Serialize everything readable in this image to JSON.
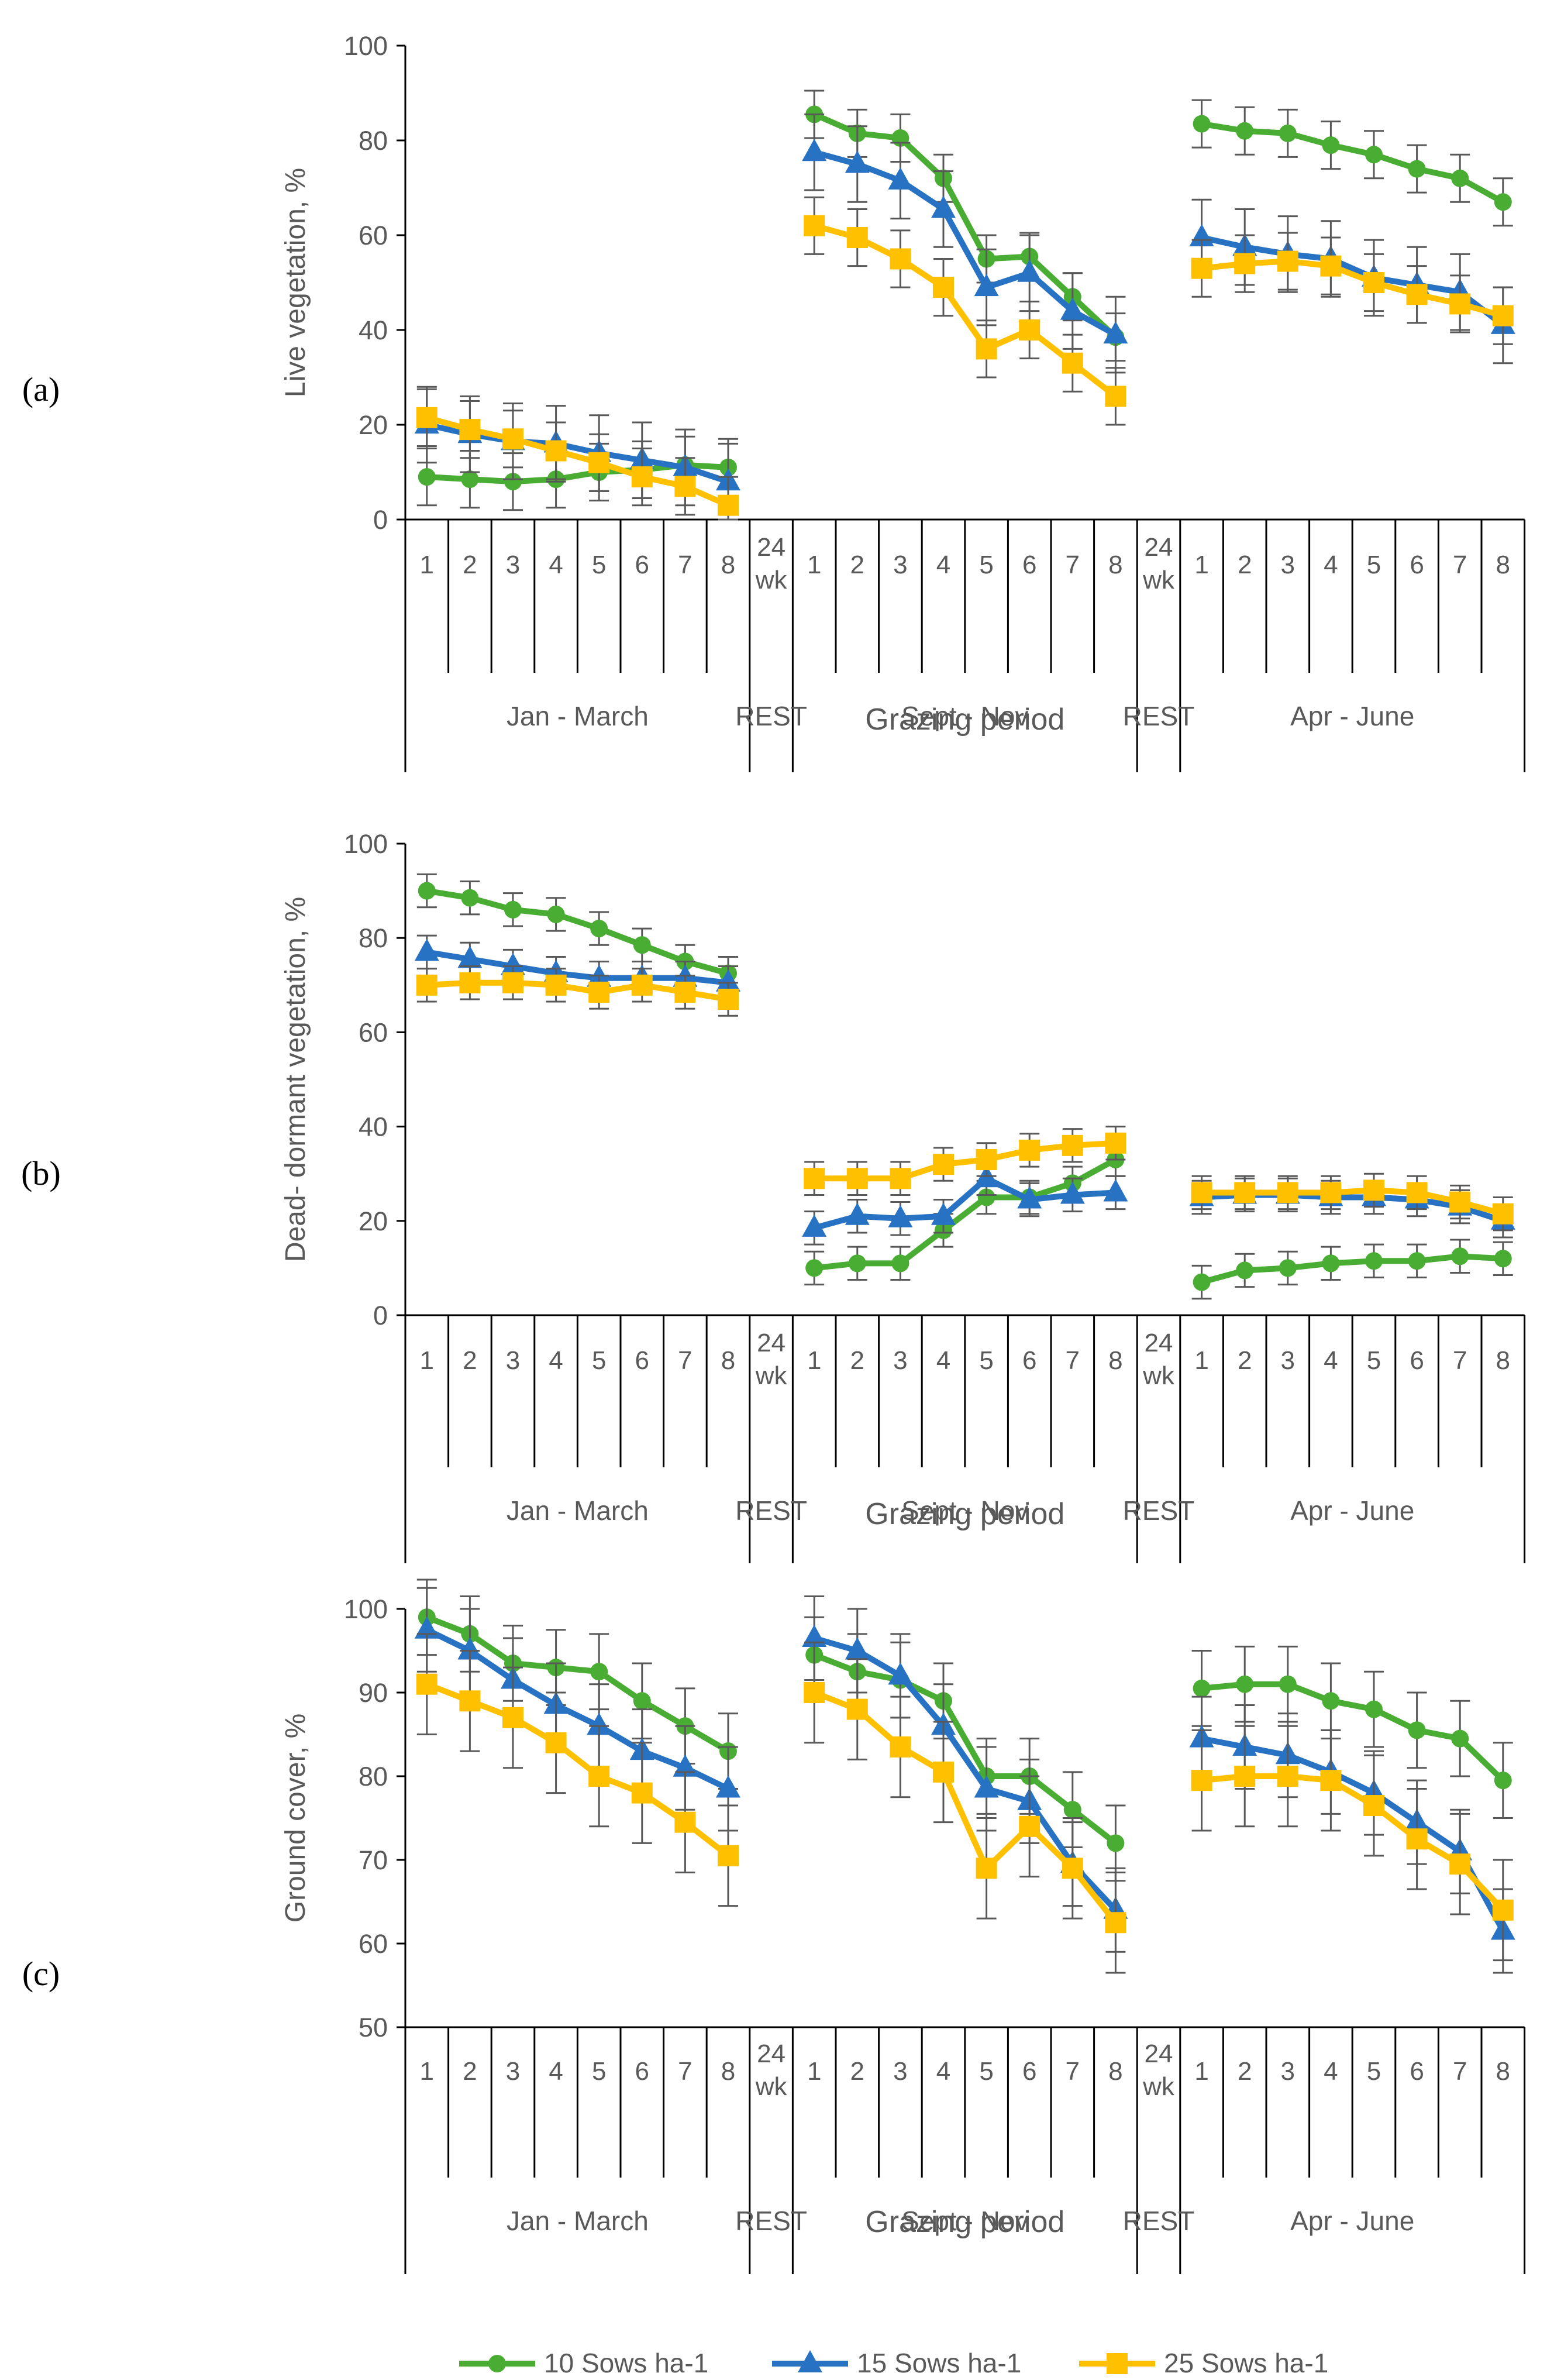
{
  "chart_data": [
    {
      "type": "line",
      "panel_label": "(a)",
      "ylabel": "Live vegetation, %",
      "xlabel": "Grazing period",
      "ylim": [
        0,
        100
      ],
      "yticks": [
        0,
        20,
        40,
        60,
        80,
        100
      ],
      "grid": false,
      "slots": [
        "1",
        "2",
        "3",
        "4",
        "5",
        "6",
        "7",
        "8",
        "24 wk",
        "1",
        "2",
        "3",
        "4",
        "5",
        "6",
        "7",
        "8",
        "24 wk",
        "1",
        "2",
        "3",
        "4",
        "5",
        "6",
        "7",
        "8"
      ],
      "groups": [
        "Jan - March",
        "REST",
        "Sept - Nov",
        "REST",
        "Apr - June"
      ],
      "series": [
        {
          "name": "10 Sows ha-1",
          "color": "#4aad33",
          "marker": "circle",
          "segments": [
            {
              "slot_start": 0,
              "values": [
                9,
                8.5,
                8,
                8.5,
                10,
                10.5,
                11.5,
                11
              ],
              "errors": [
                6,
                6,
                6,
                6,
                6,
                6,
                6,
                6
              ]
            },
            {
              "slot_start": 9,
              "values": [
                85.5,
                81.5,
                80.5,
                72,
                55,
                55.5,
                47,
                38.5
              ],
              "errors": [
                5,
                5,
                5,
                5,
                5,
                5,
                5,
                5
              ]
            },
            {
              "slot_start": 18,
              "values": [
                83.5,
                82,
                81.5,
                79,
                77,
                74,
                72,
                67
              ],
              "errors": [
                5,
                5,
                5,
                5,
                5,
                5,
                5,
                5
              ]
            }
          ]
        },
        {
          "name": "15 Sows ha-1",
          "color": "#2872c4",
          "marker": "triangle",
          "segments": [
            {
              "slot_start": 0,
              "values": [
                20,
                18,
                16.5,
                16,
                14,
                12.5,
                11,
                8
              ],
              "errors": [
                8,
                8,
                8,
                8,
                8,
                8,
                8,
                8
              ]
            },
            {
              "slot_start": 9,
              "values": [
                77.5,
                75,
                71.5,
                65.5,
                49,
                52,
                44,
                39
              ],
              "errors": [
                8,
                8,
                8,
                8,
                8,
                8,
                8,
                8
              ]
            },
            {
              "slot_start": 18,
              "values": [
                59.5,
                57.5,
                56,
                55,
                51,
                49.5,
                48,
                41
              ],
              "errors": [
                8,
                8,
                8,
                8,
                8,
                8,
                8,
                8
              ]
            }
          ]
        },
        {
          "name": "25 Sows ha-1",
          "color": "#ffc000",
          "marker": "square",
          "segments": [
            {
              "slot_start": 0,
              "values": [
                21.5,
                19,
                17,
                14.5,
                12,
                9,
                7,
                3
              ],
              "errors": [
                6,
                6,
                6,
                6,
                6,
                6,
                6,
                6
              ]
            },
            {
              "slot_start": 9,
              "values": [
                62,
                59.5,
                55,
                49,
                36,
                40,
                33,
                26
              ],
              "errors": [
                6,
                6,
                6,
                6,
                6,
                6,
                6,
                6
              ]
            },
            {
              "slot_start": 18,
              "values": [
                53,
                54,
                54.5,
                53.5,
                50,
                47.5,
                45.5,
                43
              ],
              "errors": [
                6,
                6,
                6,
                6,
                6,
                6,
                6,
                6
              ]
            }
          ]
        }
      ]
    },
    {
      "type": "line",
      "panel_label": "(b)",
      "ylabel": "Dead- dormant vegetation, %",
      "xlabel": "Grazing period",
      "ylim": [
        0,
        100
      ],
      "yticks": [
        0,
        20,
        40,
        60,
        80,
        100
      ],
      "grid": false,
      "slots": [
        "1",
        "2",
        "3",
        "4",
        "5",
        "6",
        "7",
        "8",
        "24 wk",
        "1",
        "2",
        "3",
        "4",
        "5",
        "6",
        "7",
        "8",
        "24 wk",
        "1",
        "2",
        "3",
        "4",
        "5",
        "6",
        "7",
        "8"
      ],
      "groups": [
        "Jan - March",
        "REST",
        "Sept - Nov",
        "REST",
        "Apr - June"
      ],
      "series": [
        {
          "name": "10 Sows ha-1",
          "color": "#4aad33",
          "marker": "circle",
          "segments": [
            {
              "slot_start": 0,
              "values": [
                90,
                88.5,
                86,
                85,
                82,
                78.5,
                75,
                72.5
              ],
              "errors": [
                3.5,
                3.5,
                3.5,
                3.5,
                3.5,
                3.5,
                3.5,
                3.5
              ]
            },
            {
              "slot_start": 9,
              "values": [
                10,
                11,
                11,
                18,
                25,
                25,
                28,
                33
              ],
              "errors": [
                3.5,
                3.5,
                3.5,
                3.5,
                3.5,
                3.5,
                3.5,
                3.5
              ]
            },
            {
              "slot_start": 18,
              "values": [
                7,
                9.5,
                10,
                11,
                11.5,
                11.5,
                12.5,
                12
              ],
              "errors": [
                3.5,
                3.5,
                3.5,
                3.5,
                3.5,
                3.5,
                3.5,
                3.5
              ]
            }
          ]
        },
        {
          "name": "15 Sows ha-1",
          "color": "#2872c4",
          "marker": "triangle",
          "segments": [
            {
              "slot_start": 0,
              "values": [
                77,
                75.5,
                74,
                72.5,
                71.5,
                71.5,
                71.5,
                70.5
              ],
              "errors": [
                3.5,
                3.5,
                3.5,
                3.5,
                3.5,
                3.5,
                3.5,
                3.5
              ]
            },
            {
              "slot_start": 9,
              "values": [
                18.5,
                21,
                20.5,
                21,
                29,
                24.5,
                25.5,
                26
              ],
              "errors": [
                3.5,
                3.5,
                3.5,
                3.5,
                3.5,
                3.5,
                3.5,
                3.5
              ]
            },
            {
              "slot_start": 18,
              "values": [
                25,
                25.5,
                25.5,
                25,
                25,
                24.5,
                23,
                20
              ],
              "errors": [
                3.5,
                3.5,
                3.5,
                3.5,
                3.5,
                3.5,
                3.5,
                3.5
              ]
            }
          ]
        },
        {
          "name": "25 Sows ha-1",
          "color": "#ffc000",
          "marker": "square",
          "segments": [
            {
              "slot_start": 0,
              "values": [
                70,
                70.5,
                70.5,
                70,
                68.5,
                70,
                68.5,
                67
              ],
              "errors": [
                3.5,
                3.5,
                3.5,
                3.5,
                3.5,
                3.5,
                3.5,
                3.5
              ]
            },
            {
              "slot_start": 9,
              "values": [
                29,
                29,
                29,
                32,
                33,
                35,
                36,
                36.5
              ],
              "errors": [
                3.5,
                3.5,
                3.5,
                3.5,
                3.5,
                3.5,
                3.5,
                3.5
              ]
            },
            {
              "slot_start": 18,
              "values": [
                26,
                26,
                26,
                26,
                26.5,
                26,
                24,
                21.5
              ],
              "errors": [
                3.5,
                3.5,
                3.5,
                3.5,
                3.5,
                3.5,
                3.5,
                3.5
              ]
            }
          ]
        }
      ]
    },
    {
      "type": "line",
      "panel_label": "(c)",
      "ylabel": "Ground cover, %",
      "xlabel": "Grazing period",
      "ylim": [
        50,
        100
      ],
      "yticks": [
        50,
        60,
        70,
        80,
        90,
        100
      ],
      "grid": false,
      "slots": [
        "1",
        "2",
        "3",
        "4",
        "5",
        "6",
        "7",
        "8",
        "24 wk",
        "1",
        "2",
        "3",
        "4",
        "5",
        "6",
        "7",
        "8",
        "24 wk",
        "1",
        "2",
        "3",
        "4",
        "5",
        "6",
        "7",
        "8"
      ],
      "groups": [
        "Jan - March",
        "REST",
        "Sept - Nov",
        "REST",
        "Apr - June"
      ],
      "series": [
        {
          "name": "10 Sows ha-1",
          "color": "#4aad33",
          "marker": "circle",
          "segments": [
            {
              "slot_start": 0,
              "values": [
                99,
                97,
                93.5,
                93,
                92.5,
                89,
                86,
                83
              ],
              "errors": [
                4.5,
                4.5,
                4.5,
                4.5,
                4.5,
                4.5,
                4.5,
                4.5
              ]
            },
            {
              "slot_start": 9,
              "values": [
                94.5,
                92.5,
                91.5,
                89,
                80,
                80,
                76,
                72
              ],
              "errors": [
                4.5,
                4.5,
                4.5,
                4.5,
                4.5,
                4.5,
                4.5,
                4.5
              ]
            },
            {
              "slot_start": 18,
              "values": [
                90.5,
                91,
                91,
                89,
                88,
                85.5,
                84.5,
                79.5
              ],
              "errors": [
                4.5,
                4.5,
                4.5,
                4.5,
                4.5,
                4.5,
                4.5,
                4.5
              ]
            }
          ]
        },
        {
          "name": "15 Sows ha-1",
          "color": "#2872c4",
          "marker": "triangle",
          "segments": [
            {
              "slot_start": 0,
              "values": [
                97.5,
                95,
                91.5,
                88.5,
                86,
                83,
                81,
                78.5
              ],
              "errors": [
                5,
                5,
                5,
                5,
                5,
                5,
                5,
                5
              ]
            },
            {
              "slot_start": 9,
              "values": [
                96.5,
                95,
                92,
                86,
                78.5,
                77,
                69.5,
                64
              ],
              "errors": [
                5,
                5,
                5,
                5,
                5,
                5,
                5,
                5
              ]
            },
            {
              "slot_start": 18,
              "values": [
                84.5,
                83.5,
                82.5,
                80.5,
                78,
                74.5,
                71,
                61.5
              ],
              "errors": [
                5,
                5,
                5,
                5,
                5,
                5,
                5,
                5
              ]
            }
          ]
        },
        {
          "name": "25 Sows ha-1",
          "color": "#ffc000",
          "marker": "square",
          "segments": [
            {
              "slot_start": 0,
              "values": [
                91,
                89,
                87,
                84,
                80,
                78,
                74.5,
                70.5
              ],
              "errors": [
                6,
                6,
                6,
                6,
                6,
                6,
                6,
                6
              ]
            },
            {
              "slot_start": 9,
              "values": [
                90,
                88,
                83.5,
                80.5,
                69,
                74,
                69,
                62.5
              ],
              "errors": [
                6,
                6,
                6,
                6,
                6,
                6,
                6,
                6
              ]
            },
            {
              "slot_start": 18,
              "values": [
                79.5,
                80,
                80,
                79.5,
                76.5,
                72.5,
                69.5,
                64
              ],
              "errors": [
                6,
                6,
                6,
                6,
                6,
                6,
                6,
                6
              ]
            }
          ]
        }
      ]
    }
  ],
  "legend": {
    "position": "bottom-center",
    "entries": [
      {
        "label": "10 Sows ha-1",
        "color": "#4aad33",
        "marker": "circle"
      },
      {
        "label": "15 Sows ha-1",
        "color": "#2872c4",
        "marker": "triangle"
      },
      {
        "label": "25 Sows ha-1",
        "color": "#ffc000",
        "marker": "square"
      }
    ]
  }
}
